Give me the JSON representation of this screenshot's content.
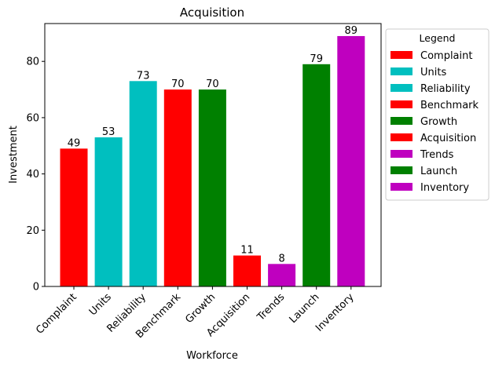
{
  "chart_data": {
    "type": "bar",
    "title": "Acquisition",
    "xlabel": "Workforce",
    "ylabel": "Investment",
    "categories": [
      "Complaint",
      "Units",
      "Reliability",
      "Benchmark",
      "Growth",
      "Acquisition",
      "Trends",
      "Launch",
      "Inventory"
    ],
    "values": [
      49,
      53,
      73,
      70,
      70,
      11,
      8,
      79,
      89
    ],
    "bar_colors": [
      "#ff0000",
      "#00bfbf",
      "#00bfbf",
      "#ff0000",
      "#008000",
      "#ff0000",
      "#bf00bf",
      "#008000",
      "#bf00bf"
    ],
    "ylim": [
      0,
      93.45
    ],
    "yticks": [
      0,
      20,
      40,
      60,
      80
    ],
    "grid": false,
    "legend": {
      "title": "Legend",
      "placement": "outside-right",
      "entries": [
        {
          "label": "Complaint",
          "color": "#ff0000"
        },
        {
          "label": "Units",
          "color": "#00bfbf"
        },
        {
          "label": "Reliability",
          "color": "#00bfbf"
        },
        {
          "label": "Benchmark",
          "color": "#ff0000"
        },
        {
          "label": "Growth",
          "color": "#008000"
        },
        {
          "label": "Acquisition",
          "color": "#ff0000"
        },
        {
          "label": "Trends",
          "color": "#bf00bf"
        },
        {
          "label": "Launch",
          "color": "#008000"
        },
        {
          "label": "Inventory",
          "color": "#bf00bf"
        }
      ]
    }
  }
}
